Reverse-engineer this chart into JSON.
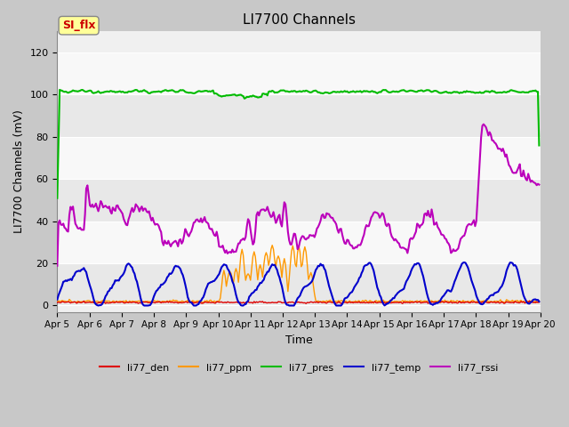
{
  "title": "LI7700 Channels",
  "ylabel": "LI7700 Channels (mV)",
  "xlabel": "Time",
  "annotation_text": "SI_flx",
  "annotation_bg": "#ffff99",
  "annotation_border": "#aaaaaa",
  "annotation_fg": "#cc0000",
  "ylim": [
    -3,
    130
  ],
  "yticks": [
    0,
    20,
    40,
    60,
    80,
    100,
    120
  ],
  "series_colors": {
    "den": "#dd0000",
    "ppm": "#ff9900",
    "pres": "#00bb00",
    "temp": "#0000cc",
    "rssi": "#bb00bb"
  },
  "n_points": 400,
  "xtick_labels": [
    "Apr 5",
    "Apr 6",
    "Apr 7",
    "Apr 8",
    "Apr 9",
    "Apr 10",
    "Apr 11",
    "Apr 12",
    "Apr 13",
    "Apr 14",
    "Apr 15",
    "Apr 16",
    "Apr 17",
    "Apr 18",
    "Apr 19",
    "Apr 20"
  ],
  "band_colors": [
    "#f0f0f0",
    "#e0e0e0"
  ]
}
